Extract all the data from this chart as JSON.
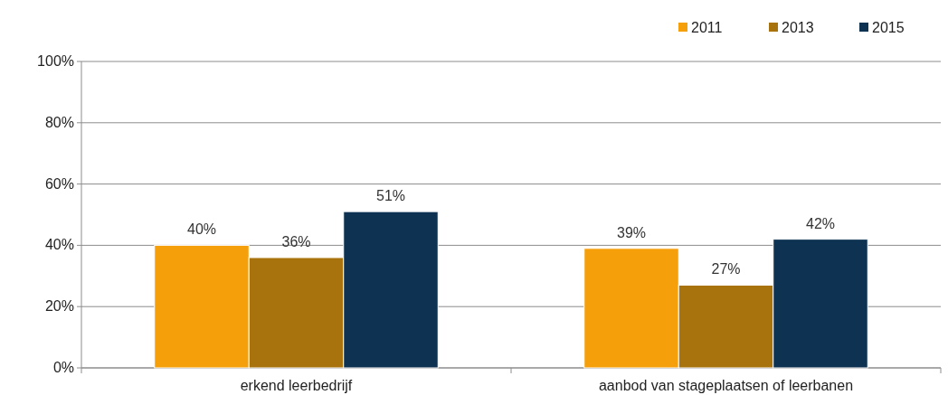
{
  "chart_data": {
    "type": "bar",
    "categories": [
      "erkend leerbedrijf",
      "aanbod van stageplaatsen of leerbanen"
    ],
    "series": [
      {
        "name": "2011",
        "color": "#f5a00a",
        "values": [
          40,
          39
        ],
        "value_labels": [
          "40%",
          "39%"
        ]
      },
      {
        "name": "2013",
        "color": "#a8720c",
        "values": [
          36,
          27
        ],
        "value_labels": [
          "36%",
          "27%"
        ]
      },
      {
        "name": "2015",
        "color": "#0e3352",
        "values": [
          51,
          42
        ],
        "value_labels": [
          "51%",
          "42%"
        ]
      }
    ],
    "ylim": [
      0,
      100
    ],
    "yticks": [
      {
        "value": 0,
        "label": "0%"
      },
      {
        "value": 20,
        "label": "20%"
      },
      {
        "value": 40,
        "label": "40%"
      },
      {
        "value": 60,
        "label": "60%"
      },
      {
        "value": 80,
        "label": "80%"
      },
      {
        "value": 100,
        "label": "100%"
      }
    ],
    "grid": "y",
    "legend": "top right"
  }
}
